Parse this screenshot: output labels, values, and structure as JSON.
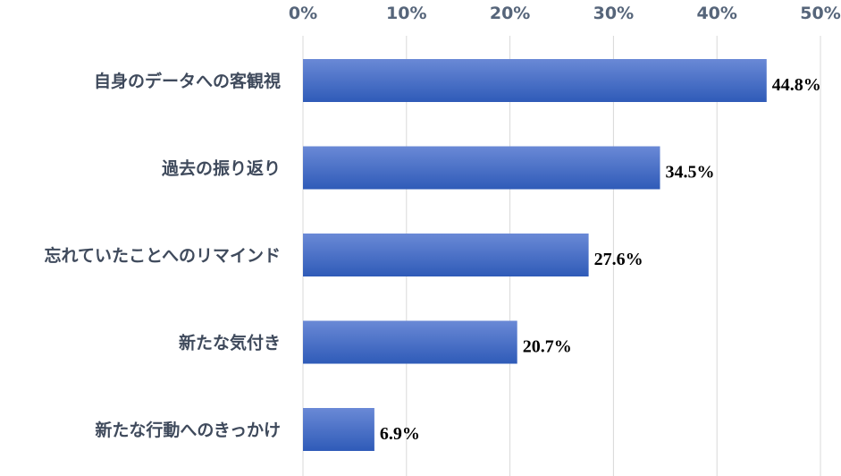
{
  "chart_data": {
    "type": "bar",
    "orientation": "horizontal",
    "categories": [
      "自身のデータへの客観視",
      "過去の振り返り",
      "忘れていたことへのリマインド",
      "新たな気付き",
      "新たな行動へのきっかけ"
    ],
    "values": [
      44.8,
      34.5,
      27.6,
      20.7,
      6.9
    ],
    "value_labels": [
      "44.8%",
      "34.5%",
      "27.6%",
      "20.7%",
      "6.9%"
    ],
    "x_ticks": [
      "0%",
      "10%",
      "20%",
      "30%",
      "40%",
      "50%"
    ],
    "xlim": [
      0,
      50
    ],
    "xaxis_position": "top",
    "grid": true,
    "legend": "none",
    "title": "",
    "xlabel": "",
    "ylabel": "",
    "colors": {
      "bar_top": "#6a89d6",
      "bar_bottom": "#2f5bb8",
      "grid": "#d9d9d9",
      "tick_text": "#56657a",
      "category_text": "#3f4a5c",
      "value_text": "#000000"
    }
  }
}
